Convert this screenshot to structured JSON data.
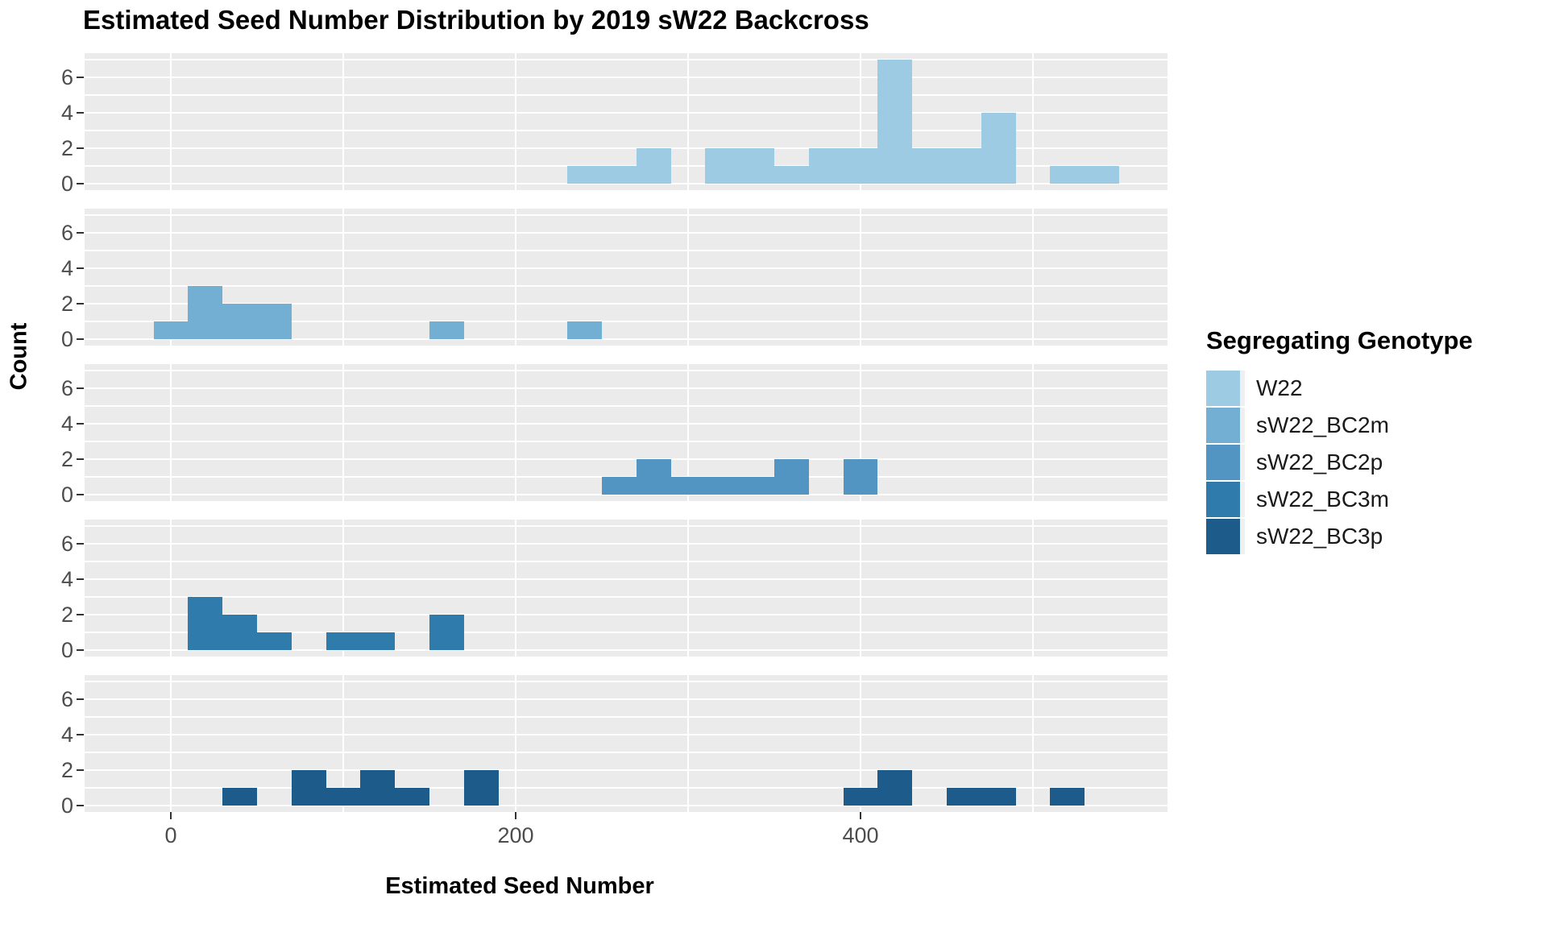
{
  "title": "Estimated Seed Number Distribution by 2019 sW22 Backcross",
  "x_axis": {
    "label": "Estimated Seed Number",
    "tick_labels": [
      "0",
      "200",
      "400"
    ]
  },
  "y_axis": {
    "label": "Count",
    "tick_labels": [
      "0",
      "2",
      "4",
      "6"
    ]
  },
  "legend": {
    "title": "Segregating Genotype"
  },
  "colors": {
    "panel_background": "#EBEBEB",
    "gridline": "#FFFFFF",
    "axis_text": "#4D4D4D",
    "tick_mark": "#333333",
    "legend_key_background": "#EFEFEF"
  },
  "chart_data": {
    "type": "bar",
    "subtype": "faceted-histogram",
    "title": "Estimated Seed Number Distribution by 2019 sW22 Backcross",
    "xlabel": "Estimated Seed Number",
    "ylabel": "Count",
    "legend_title": "Segregating Genotype",
    "legend_position": "right",
    "grid": true,
    "binwidth": 20,
    "x_domain": [
      -50,
      578
    ],
    "y_domain": [
      0,
      7.37
    ],
    "x_major_ticks": [
      0,
      200,
      400
    ],
    "x_minor_gridlines": [
      100,
      300,
      500
    ],
    "y_major_ticks": [
      0,
      2,
      4,
      6
    ],
    "y_minor_gridlines": [
      1,
      3,
      5,
      7
    ],
    "facets": [
      {
        "name": "W22",
        "color": "#9DCBE4",
        "bins": [
          [
            230,
            1
          ],
          [
            250,
            1
          ],
          [
            270,
            2
          ],
          [
            310,
            2
          ],
          [
            330,
            2
          ],
          [
            350,
            1
          ],
          [
            370,
            2
          ],
          [
            390,
            2
          ],
          [
            410,
            7
          ],
          [
            430,
            2
          ],
          [
            450,
            2
          ],
          [
            470,
            4
          ],
          [
            510,
            1
          ],
          [
            530,
            1
          ]
        ]
      },
      {
        "name": "sW22_BC2m",
        "color": "#73AFD2",
        "bins": [
          [
            -10,
            1
          ],
          [
            10,
            3
          ],
          [
            30,
            2
          ],
          [
            50,
            2
          ],
          [
            150,
            1
          ],
          [
            230,
            1
          ]
        ]
      },
      {
        "name": "sW22_BC2p",
        "color": "#5295C2",
        "bins": [
          [
            250,
            1
          ],
          [
            270,
            2
          ],
          [
            290,
            1
          ],
          [
            310,
            1
          ],
          [
            330,
            1
          ],
          [
            350,
            2
          ],
          [
            390,
            2
          ]
        ]
      },
      {
        "name": "sW22_BC3m",
        "color": "#2F7CAC",
        "bins": [
          [
            10,
            3
          ],
          [
            30,
            2
          ],
          [
            50,
            1
          ],
          [
            90,
            1
          ],
          [
            110,
            1
          ],
          [
            150,
            2
          ]
        ]
      },
      {
        "name": "sW22_BC3p",
        "color": "#1D5C8A",
        "bins": [
          [
            30,
            1
          ],
          [
            70,
            2
          ],
          [
            90,
            1
          ],
          [
            110,
            2
          ],
          [
            130,
            1
          ],
          [
            170,
            2
          ],
          [
            390,
            1
          ],
          [
            410,
            2
          ],
          [
            450,
            1
          ],
          [
            470,
            1
          ],
          [
            510,
            1
          ]
        ]
      }
    ]
  }
}
